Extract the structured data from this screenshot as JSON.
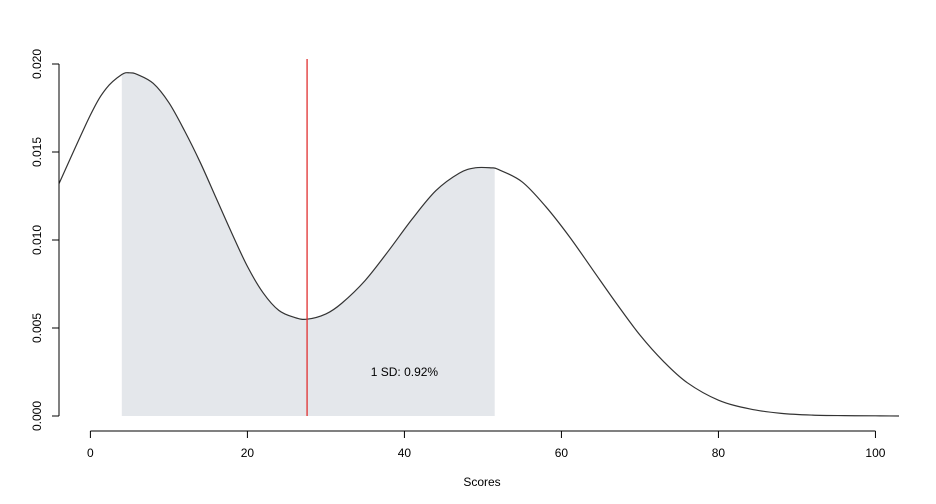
{
  "chart_data": {
    "type": "area",
    "title": "",
    "xlabel": "Scores",
    "ylabel": "",
    "xlim": [
      -4,
      103
    ],
    "ylim": [
      0,
      0.02
    ],
    "x_ticks": [
      0,
      20,
      40,
      60,
      80,
      100
    ],
    "x_tick_labels": [
      "0",
      "20",
      "40",
      "60",
      "80",
      "100"
    ],
    "y_ticks": [
      0,
      0.005,
      0.01,
      0.015,
      0.02
    ],
    "y_tick_labels": [
      "0.000",
      "0.005",
      "0.010",
      "0.015",
      "0.020"
    ],
    "grid": false,
    "density_curve": {
      "x": [
        -4,
        0,
        2,
        4,
        5,
        6,
        8,
        10,
        12,
        14,
        16,
        18,
        20,
        22,
        24,
        26,
        27.6,
        30,
        32,
        35,
        38,
        41,
        44,
        47,
        49,
        51,
        52,
        55,
        58,
        61,
        64,
        67,
        70,
        73,
        76,
        80,
        84,
        88,
        92,
        96,
        100,
        103
      ],
      "y": [
        0.0132,
        0.0171,
        0.0186,
        0.0194,
        0.0195,
        0.0194,
        0.0189,
        0.0178,
        0.0162,
        0.0144,
        0.0124,
        0.0104,
        0.0085,
        0.007,
        0.006,
        0.0056,
        0.0055,
        0.0058,
        0.0064,
        0.0077,
        0.0094,
        0.0112,
        0.0128,
        0.0138,
        0.0141,
        0.0141,
        0.014,
        0.0133,
        0.0119,
        0.0102,
        0.0083,
        0.0064,
        0.0046,
        0.0031,
        0.0019,
        0.0009,
        0.0004,
        0.00015,
        5e-05,
        2e-05,
        1e-05,
        0.0
      ],
      "color": "#333333"
    },
    "shaded_region": {
      "x_from": 4,
      "x_to": 51.5,
      "color": "#e4e7eb"
    },
    "reference_line": {
      "x": 27.6,
      "color": "#e03030"
    },
    "annotation": {
      "text": "1 SD: 0.92%",
      "x": 40,
      "y": 0.0025
    }
  }
}
